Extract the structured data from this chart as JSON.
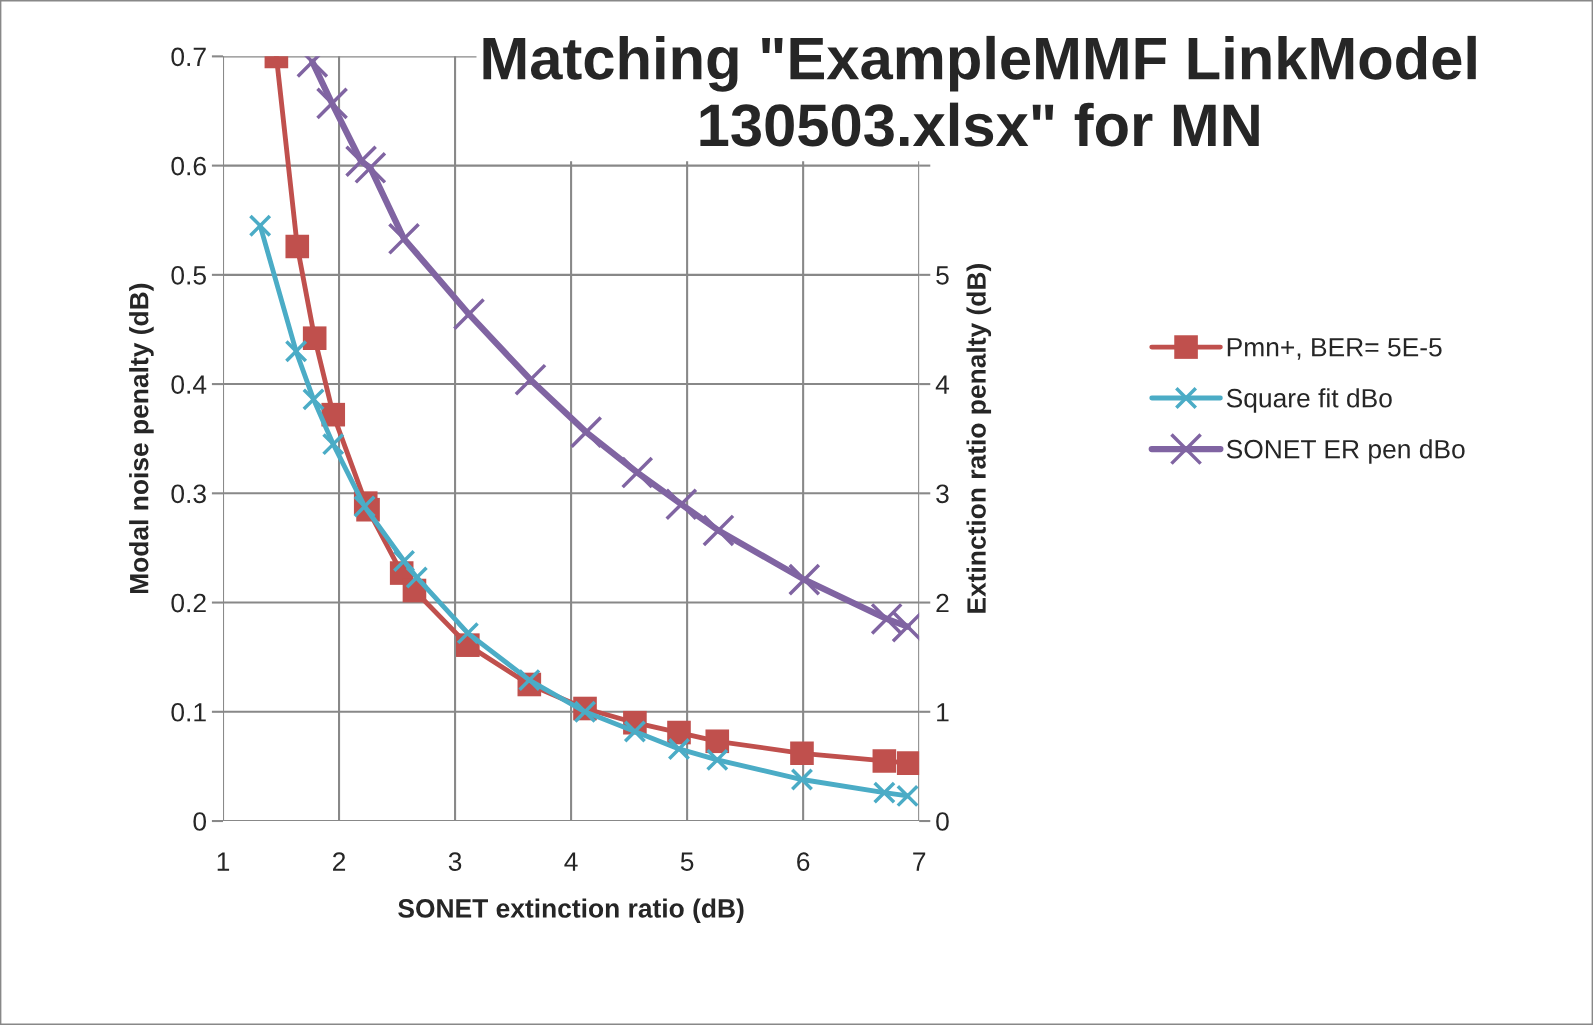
{
  "chart_data": {
    "type": "line",
    "title": "Matching \"ExampleMMF LinkModel 130503.xlsx\" for MN",
    "xlabel": "SONET extinction ratio (dB)",
    "ylabel": "Modal noise penalty (dB)",
    "y2label": "Extinction ratio penalty (dB)",
    "xlim": [
      1,
      7
    ],
    "xticks": [
      1,
      2,
      3,
      4,
      5,
      6,
      7
    ],
    "ylim": [
      0,
      0.7
    ],
    "yticks": [
      0,
      0.1,
      0.2,
      0.3,
      0.4,
      0.5,
      0.6,
      0.7
    ],
    "y2lim": [
      0,
      7
    ],
    "y2ticks": [
      0,
      1,
      2,
      3,
      4,
      5,
      {
        "value": 6,
        "label": null
      },
      {
        "value": 7,
        "label": null
      }
    ],
    "grid": true,
    "legend": "right",
    "series": [
      {
        "name": "Pmn+, BER= 5E-5",
        "color": "#c0504d",
        "marker": "square",
        "x": [
          1.46,
          1.64,
          1.79,
          1.95,
          2.23,
          2.25,
          2.54,
          2.65,
          3.11,
          3.64,
          4.12,
          4.55,
          4.93,
          5.26,
          5.99,
          6.7,
          6.91
        ],
        "values": [
          0.7,
          0.526,
          0.442,
          0.372,
          0.291,
          0.285,
          0.227,
          0.211,
          0.161,
          0.125,
          0.103,
          0.09,
          0.081,
          0.073,
          0.062,
          0.055,
          0.053
        ]
      },
      {
        "name": "Square fit dBo",
        "color": "#4bacc6",
        "marker": "cross",
        "x": [
          1.32,
          1.63,
          1.78,
          1.95,
          2.22,
          2.56,
          2.67,
          3.11,
          3.64,
          4.12,
          4.55,
          4.93,
          5.26,
          5.99,
          6.7,
          6.9
        ],
        "values": [
          0.545,
          0.43,
          0.386,
          0.345,
          0.288,
          0.238,
          0.223,
          0.172,
          0.129,
          0.1,
          0.082,
          0.066,
          0.056,
          0.038,
          0.026,
          0.023
        ]
      },
      {
        "name": "SONET ER pen dBo",
        "color": "#8064a2",
        "marker": "cross",
        "axis": "y2",
        "x": [
          1.77,
          1.94,
          2.19,
          2.27,
          2.56,
          3.12,
          3.65,
          4.13,
          4.57,
          4.95,
          5.27,
          6.01,
          6.72,
          6.9
        ],
        "values": [
          6.95,
          6.57,
          6.04,
          5.98,
          5.33,
          4.64,
          4.04,
          3.56,
          3.19,
          2.9,
          2.66,
          2.21,
          1.85,
          1.78
        ]
      }
    ]
  }
}
